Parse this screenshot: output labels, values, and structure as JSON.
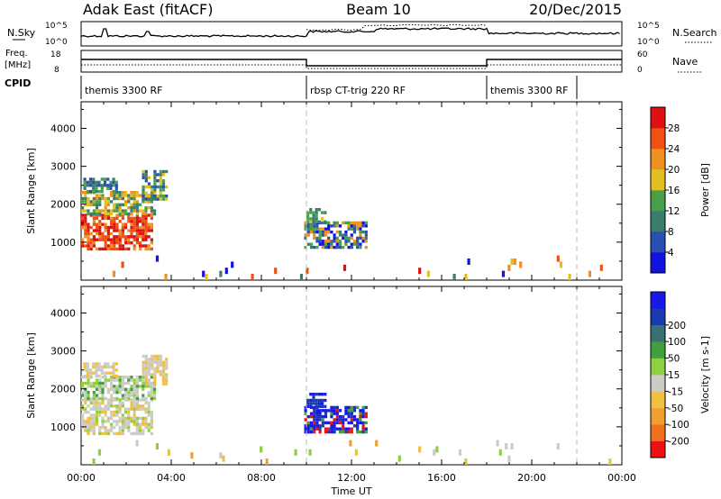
{
  "header": {
    "station": "Adak East (fitACF)",
    "beam": "Beam 10",
    "date": "20/Dec/2015"
  },
  "strips": {
    "nsky_label": "N.Sky",
    "nsearch_label": "N.Search",
    "freq_label": "Freq.",
    "freq_unit": "[MHz]",
    "nave_label": "Nave",
    "cpid_label": "CPID",
    "sky_ticks": [
      "10^5",
      "10^0"
    ],
    "freq_ticks": [
      "18",
      "8"
    ],
    "nave_ticks": [
      "60",
      "0"
    ],
    "cpid_segments": [
      {
        "name": "themis 3300 RF",
        "start_h": 0,
        "end_h": 10
      },
      {
        "name": "rbsp CT-trig 220 RF",
        "start_h": 10,
        "end_h": 18
      },
      {
        "name": "themis 3300 RF",
        "start_h": 18,
        "end_h": 22
      }
    ]
  },
  "x_axis": {
    "label": "Time UT",
    "ticks": [
      "00:00",
      "04:00",
      "08:00",
      "12:00",
      "16:00",
      "20:00",
      "00:00"
    ],
    "range_h": [
      0,
      24
    ]
  },
  "colors": {
    "power": [
      "#1212e0",
      "#2850b4",
      "#3a7d6e",
      "#4aa048",
      "#e0c020",
      "#f09020",
      "#f05010",
      "#e01010"
    ],
    "velocity": [
      "#ee1111",
      "#f07020",
      "#f0a030",
      "#f0c040",
      "#cccbc5",
      "#8fd040",
      "#40a040",
      "#3a7070",
      "#1a3ab0",
      "#1818e8"
    ]
  },
  "chart_data": [
    {
      "type": "heatmap",
      "panel": "power",
      "ylabel": "Slant Range [km]",
      "xlabel": "",
      "ylim": [
        0,
        4700
      ],
      "yticks": [
        1000,
        2000,
        3000,
        4000
      ],
      "colorbar_label": "Power [dB]",
      "colorbar_ticks": [
        "4",
        "8",
        "12",
        "16",
        "20",
        "24",
        "28"
      ],
      "regions": [
        {
          "t0": 0.0,
          "t1": 3.1,
          "r0": 850,
          "r1": 1750,
          "levels": [
            5,
            6,
            7,
            7,
            6
          ]
        },
        {
          "t0": 0.0,
          "t1": 3.3,
          "r0": 1750,
          "r1": 2350,
          "levels": [
            2,
            3,
            4,
            5
          ]
        },
        {
          "t0": 0.1,
          "t1": 1.6,
          "r0": 2350,
          "r1": 2700,
          "levels": [
            1,
            2,
            3
          ]
        },
        {
          "t0": 2.7,
          "t1": 3.8,
          "r0": 2100,
          "r1": 2900,
          "levels": [
            1,
            2,
            3,
            4
          ]
        },
        {
          "t0": 9.9,
          "t1": 12.7,
          "r0": 900,
          "r1": 1550,
          "levels": [
            0,
            1,
            2,
            3,
            5
          ]
        },
        {
          "t0": 10.0,
          "t1": 10.8,
          "r0": 1500,
          "r1": 1900,
          "levels": [
            2,
            3,
            4
          ]
        },
        {
          "t0": 0.5,
          "t1": 23.5,
          "r0": 100,
          "r1": 650,
          "levels": [
            0,
            2,
            4,
            5,
            6,
            7
          ],
          "sparse": true
        }
      ]
    },
    {
      "type": "heatmap",
      "panel": "velocity",
      "ylabel": "Slant Range [km]",
      "xlabel": "Time UT",
      "ylim": [
        0,
        4700
      ],
      "yticks": [
        1000,
        2000,
        3000,
        4000
      ],
      "colorbar_label": "Velocity [m s-1]",
      "colorbar_ticks": [
        "-200",
        "-100",
        "-50",
        "-15",
        "15",
        "50",
        "100",
        "200"
      ],
      "regions": [
        {
          "t0": 0.0,
          "t1": 3.1,
          "r0": 850,
          "r1": 1750,
          "levels": [
            4,
            4,
            4,
            5,
            3
          ]
        },
        {
          "t0": 0.0,
          "t1": 3.3,
          "r0": 1750,
          "r1": 2350,
          "levels": [
            4,
            4,
            5,
            6
          ]
        },
        {
          "t0": 0.1,
          "t1": 1.6,
          "r0": 2350,
          "r1": 2700,
          "levels": [
            4,
            4,
            3
          ]
        },
        {
          "t0": 2.7,
          "t1": 3.8,
          "r0": 2100,
          "r1": 2900,
          "levels": [
            4,
            4,
            3
          ]
        },
        {
          "t0": 9.9,
          "t1": 12.7,
          "r0": 900,
          "r1": 1550,
          "levels": [
            9,
            9,
            8,
            6,
            0
          ]
        },
        {
          "t0": 10.0,
          "t1": 10.8,
          "r0": 1500,
          "r1": 1900,
          "levels": [
            9,
            8
          ]
        },
        {
          "t0": 0.5,
          "t1": 23.5,
          "r0": 100,
          "r1": 650,
          "levels": [
            3,
            4,
            2,
            5
          ],
          "sparse": true
        }
      ]
    }
  ]
}
